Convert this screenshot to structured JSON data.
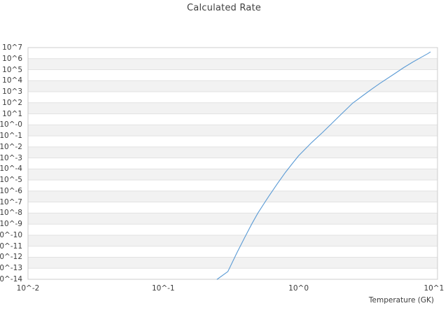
{
  "chart_data": {
    "type": "line",
    "title": "Calculated Rate",
    "xlabel": "Temperature (GK)",
    "ylabel": "",
    "x_scale": "log",
    "y_scale": "log",
    "xlim": [
      0.01,
      10.63
    ],
    "ylim": [
      1e-14,
      10000000.0
    ],
    "grid": "horizontal gridlines each decade with alternating light-grey decade bands, no vertical gridlines",
    "legend": "none",
    "colors": {
      "background": "#ffffff",
      "band": "#f2f2f2",
      "gridline": "#e2e2e2",
      "border": "#cccccc",
      "text": "#3c3c3c",
      "line": "#5b9bd5"
    },
    "x_ticks": [
      {
        "label": "10^-2",
        "log10": -2
      },
      {
        "label": "10^-1",
        "log10": -1
      },
      {
        "label": "10^0",
        "log10": 0
      },
      {
        "label": "10^1",
        "log10": 1
      }
    ],
    "y_ticks": [
      {
        "label": "10^7",
        "log10": 7
      },
      {
        "label": "10^6",
        "log10": 6
      },
      {
        "label": "10^5",
        "log10": 5
      },
      {
        "label": "10^4",
        "log10": 4
      },
      {
        "label": "10^3",
        "log10": 3
      },
      {
        "label": "10^2",
        "log10": 2
      },
      {
        "label": "10^1",
        "log10": 1
      },
      {
        "label": "10^-0",
        "log10": 0
      },
      {
        "label": "10^-1",
        "log10": -1
      },
      {
        "label": "10^-2",
        "log10": -2
      },
      {
        "label": "10^-3",
        "log10": -3
      },
      {
        "label": "10^-4",
        "log10": -4
      },
      {
        "label": "10^-5",
        "log10": -5
      },
      {
        "label": "10^-6",
        "log10": -6
      },
      {
        "label": "10^-7",
        "log10": -7
      },
      {
        "label": "10^-8",
        "log10": -8
      },
      {
        "label": "10^-9",
        "log10": -9
      },
      {
        "label": "10^-10",
        "log10": -10
      },
      {
        "label": "10^-11",
        "log10": -11
      },
      {
        "label": "10^-12",
        "log10": -12
      },
      {
        "label": "10^-13",
        "log10": -13
      },
      {
        "label": "10^-14",
        "log10": -14
      }
    ],
    "series": [
      {
        "name": "Calculated Rate",
        "color": "#5b9bd5",
        "temperature_gk": [
          0.25,
          0.3,
          0.35,
          0.4,
          0.45,
          0.5,
          0.6,
          0.7,
          0.8,
          0.9,
          1.0,
          1.25,
          1.5,
          1.75,
          2.0,
          2.5,
          3.0,
          3.5,
          4.0,
          5.0,
          6.0,
          7.0,
          8.0,
          9.0,
          9.4
        ],
        "log10_rate": [
          -14.0,
          -13.3,
          -11.6,
          -10.2,
          -9.0,
          -8.0,
          -6.5,
          -5.3,
          -4.3,
          -3.5,
          -2.8,
          -1.6,
          -0.7,
          0.1,
          0.8,
          1.95,
          2.67,
          3.27,
          3.77,
          4.55,
          5.2,
          5.7,
          6.1,
          6.45,
          6.6
        ]
      }
    ]
  }
}
